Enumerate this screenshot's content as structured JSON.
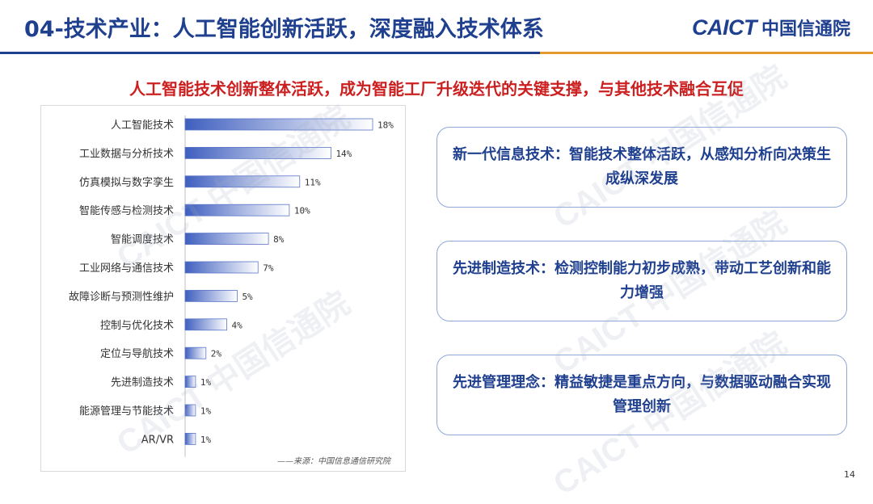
{
  "header": {
    "title": "04-技术产业：人工智能创新活跃，深度融入技术体系",
    "logo_en": "CAICT",
    "logo_cn": "中国信通院"
  },
  "subtitle": "人工智能技术创新整体活跃，成为智能工厂升级迭代的关键支撑，与其他技术融合互促",
  "chart_data": {
    "type": "bar",
    "orientation": "horizontal",
    "categories": [
      "人工智能技术",
      "工业数据与分析技术",
      "仿真模拟与数字孪生",
      "智能传感与检测技术",
      "智能调度技术",
      "工业网络与通信技术",
      "故障诊断与预测性维护",
      "控制与优化技术",
      "定位与导航技术",
      "先进制造技术",
      "能源管理与节能技术",
      "AR/VR"
    ],
    "values": [
      18,
      14,
      11,
      10,
      8,
      7,
      5,
      4,
      2,
      1,
      1,
      1
    ],
    "value_labels": [
      "18%",
      "14%",
      "11%",
      "10%",
      "8%",
      "7%",
      "5%",
      "4%",
      "2%",
      "1%",
      "1%",
      "1%"
    ],
    "xlim": [
      0,
      18
    ],
    "grid": false,
    "bar_color": "#3f5fbf",
    "source": "——来源：中国信息通信研究院"
  },
  "cards": [
    {
      "text": "新一代信息技术：智能技术整体活跃，从感知分析向决策生成纵深发展"
    },
    {
      "text": "先进制造技术：检测控制能力初步成熟，带动工艺创新和能力增强"
    },
    {
      "text": "先进管理理念：精益敏捷是重点方向，与数据驱动融合实现管理创新"
    }
  ],
  "page_number": "14",
  "watermark": "CAICT 中国信通院",
  "colors": {
    "primary": "#1f3f8f",
    "accent_orange": "#e59a2e",
    "subtitle_red": "#cc1f1f"
  }
}
